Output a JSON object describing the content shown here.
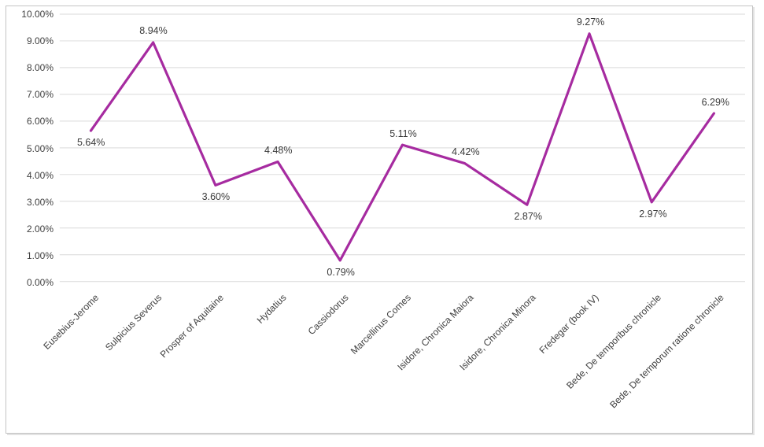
{
  "chart_data": {
    "type": "line",
    "title": "",
    "categories": [
      "Eusebius-Jerome",
      "Sulpicius Severus",
      "Prosper of Aquitaine",
      "Hydatius",
      "Cassiodorus",
      "Marcellinus Comes",
      "Isidore, Chronica Maiora",
      "Isidore, Chronica Minora",
      "Fredegar (book IV)",
      "Bede, De temporibus chronicle",
      "Bede, De temporum ratione chronicle"
    ],
    "values": [
      5.64,
      8.94,
      3.6,
      4.48,
      0.79,
      5.11,
      4.42,
      2.87,
      9.27,
      2.97,
      6.29
    ],
    "point_labels": [
      "5.64%",
      "8.94%",
      "3.60%",
      "4.48%",
      "0.79%",
      "5.11%",
      "4.42%",
      "2.87%",
      "9.27%",
      "2.97%",
      "6.29%"
    ],
    "y_ticks": [
      "0.00%",
      "1.00%",
      "2.00%",
      "3.00%",
      "4.00%",
      "5.00%",
      "6.00%",
      "7.00%",
      "8.00%",
      "9.00%",
      "10.00%"
    ],
    "ylim": [
      0,
      10
    ],
    "xlabel": "",
    "ylabel": "",
    "grid": "horizontal",
    "legend": "none",
    "line_color": "#A62BA0",
    "gridline_color": "#D9D9D9"
  }
}
